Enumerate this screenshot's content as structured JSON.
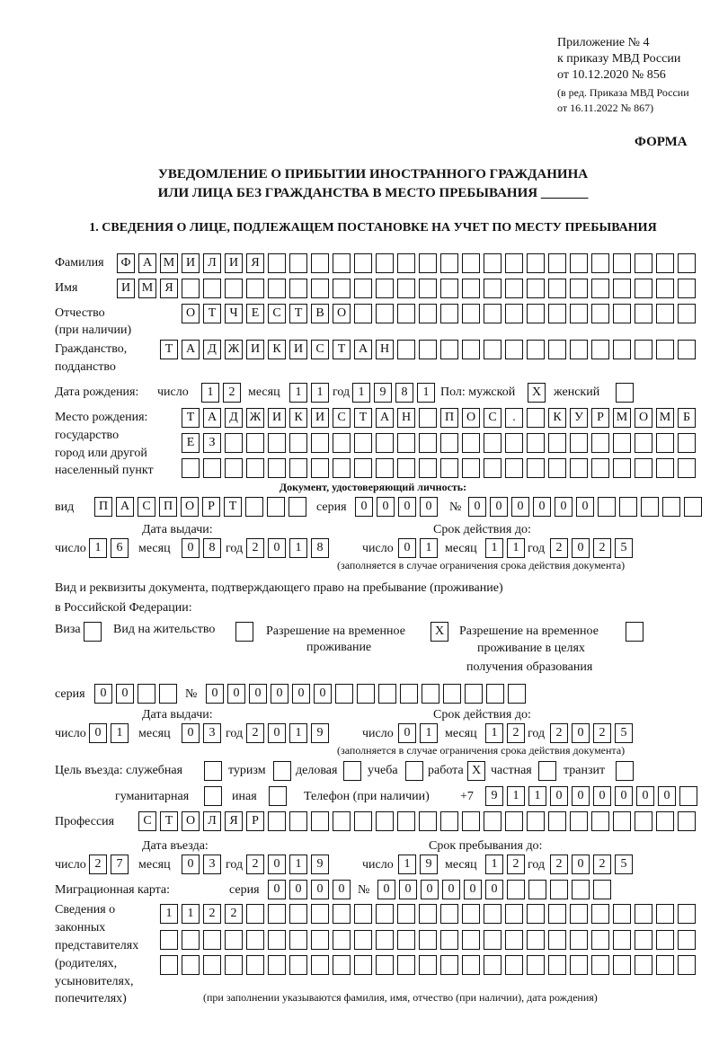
{
  "header": {
    "line1": "Приложение № 4",
    "line2": "к приказу МВД России",
    "line3": "от 10.12.2020 № 856",
    "line4": "(в ред. Приказа МВД России",
    "line5": "от 16.11.2022 № 867)",
    "forma": "ФОРМА"
  },
  "title": {
    "line1": "УВЕДОМЛЕНИЕ О ПРИБЫТИИ ИНОСТРАННОГО ГРАЖДАНИНА",
    "line2": "ИЛИ ЛИЦА БЕЗ ГРАЖДАНСТВА В МЕСТО ПРЕБЫВАНИЯ _______"
  },
  "section1": "1. СВЕДЕНИЯ О ЛИЦЕ, ПОДЛЕЖАЩЕМ ПОСТАНОВКЕ НА УЧЕТ ПО МЕСТУ ПРЕБЫВАНИЯ",
  "labels": {
    "surname": "Фамилия",
    "name": "Имя",
    "patronymic": "Отчество",
    "patronymic2": "(при наличии)",
    "citizenship": "Гражданство,",
    "citizenship2": "подданство",
    "birth_date": "Дата рождения:",
    "day": "число",
    "month": "месяц",
    "year": "год",
    "sex": "Пол: мужской",
    "female": "женский",
    "birth_place1": "Место рождения:",
    "birth_place2": "государство",
    "birth_place3": "город или другой",
    "birth_place4": "населенный пункт",
    "id_doc": "Документ, удостоверяющий личность:",
    "kind": "вид",
    "series": "серия",
    "number": "№",
    "issue_date": "Дата выдачи:",
    "valid_until": "Срок действия до:",
    "validity_note": "(заполняется в случае ограничения срока действия документа)",
    "right_doc1": "Вид и реквизиты документа, подтверждающего право на пребывание (проживание)",
    "right_doc2": "в Российской Федерации:",
    "visa": "Виза",
    "residence": "Вид на жительство",
    "trp1": "Разрешение на временное",
    "trp2": "проживание",
    "trpe1": "Разрешение на временное",
    "trpe2": "проживание в целях",
    "trpe3": "получения образования",
    "purpose": "Цель въезда: служебная",
    "tourism": "туризм",
    "business": "деловая",
    "study": "учеба",
    "work": "работа",
    "private": "частная",
    "transit": "транзит",
    "humanitarian": "гуманитарная",
    "other": "иная",
    "phone": "Телефон (при наличии)",
    "phone_prefix": "+7",
    "profession": "Профессия",
    "entry_date": "Дата въезда:",
    "stay_until": "Срок пребывания до:",
    "migration_card": "Миграционная карта:",
    "legal1": "Сведения о",
    "legal2": "законных",
    "legal3": "представителях",
    "legal4": "(родителях,",
    "legal5": "усыновителях,",
    "legal6": "попечителях)",
    "legal_note": "(при заполнении указываются фамилия, имя, отчество (при наличии), дата рождения)"
  },
  "fields": {
    "surname": "ФАМИЛИЯ",
    "name": "ИМЯ",
    "patronymic": "ОТЧЕСТВО",
    "citizenship": "ТАДЖИКИСТАН",
    "birth_day": "12",
    "birth_month": "11",
    "birth_year": "1981",
    "male": "X",
    "female": "",
    "birth_place1": "ТАДЖИКИСТАН ПОС. КУРМОМБ",
    "birth_place2": "ЕЗ",
    "birth_place3": "",
    "doc_kind": "ПАСПОРТ",
    "doc_series": "0000",
    "doc_number": "000000",
    "doc_issue_day": "16",
    "doc_issue_month": "08",
    "doc_issue_year": "2018",
    "doc_valid_day": "01",
    "doc_valid_month": "11",
    "doc_valid_year": "2025",
    "visa": "",
    "residence": "",
    "trp": "X",
    "trpe": "",
    "right_series": "00",
    "right_number": "000000",
    "right_issue_day": "01",
    "right_issue_month": "03",
    "right_issue_year": "2019",
    "right_valid_day": "01",
    "right_valid_month": "12",
    "right_valid_year": "2025",
    "p_official": "",
    "p_tourism": "",
    "p_business": "",
    "p_study": "",
    "p_work": "X",
    "p_private": "",
    "p_transit": "",
    "p_humanitarian": "",
    "p_other": "",
    "phone": "911000000",
    "profession": "СТОЛЯР",
    "entry_day": "27",
    "entry_month": "03",
    "entry_year": "2019",
    "stay_day": "19",
    "stay_month": "12",
    "stay_year": "2025",
    "mc_series": "0000",
    "mc_number": "000000",
    "legal1": "1122",
    "legal2": "",
    "legal3": ""
  }
}
